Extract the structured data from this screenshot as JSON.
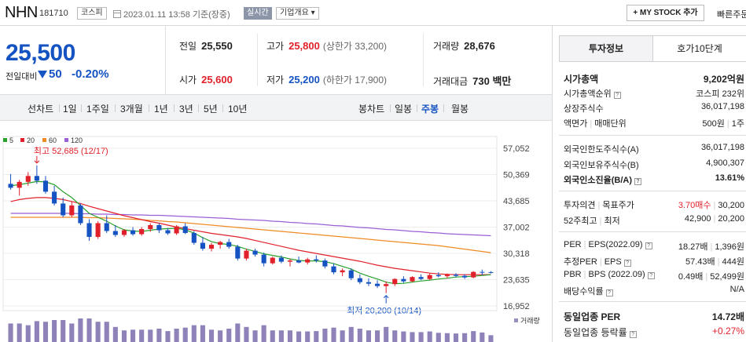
{
  "header": {
    "name": "NHN",
    "code": "181710",
    "market": "코스피",
    "datetime": "2023.01.11 13:58 기준(장중)",
    "realtime": "실시간",
    "overview": "기업개요 ▾",
    "mystock": "+ MY STOCK 추가",
    "quick": "빠른주문"
  },
  "price": {
    "current": "25,500",
    "change_label": "전일대비",
    "change_amount": "50",
    "change_percent": "-0.20%"
  },
  "stats": {
    "prev_close_label": "전일",
    "prev_close": "25,550",
    "high_label": "고가",
    "high": "25,800",
    "upper_limit": "(상한가 33,200)",
    "volume_label": "거래량",
    "volume": "28,676",
    "open_label": "시가",
    "open": "25,600",
    "low_label": "저가",
    "low": "25,200",
    "lower_limit": "(하한가 17,900)",
    "amount_label": "거래대금",
    "amount": "730 백만"
  },
  "tabs": {
    "line": "선차트",
    "d1": "1일",
    "w1": "1주일",
    "m3": "3개월",
    "y1": "1년",
    "y3": "3년",
    "y5": "5년",
    "y10": "10년",
    "candle": "봉차트",
    "daily": "일봉",
    "weekly": "주봉",
    "monthly": "월봉"
  },
  "colors": {
    "up": "#e0212b",
    "down": "#1553c3",
    "ma5": "#27a12b",
    "ma20": "#e0212b",
    "ma60": "#f08a24",
    "ma120": "#9a5fd4"
  },
  "chart_data": {
    "type": "candlestick",
    "period": "주봉",
    "legend": [
      {
        "name": "5",
        "color": "#27a12b"
      },
      {
        "name": "20",
        "color": "#e0212b"
      },
      {
        "name": "60",
        "color": "#f08a24"
      },
      {
        "name": "120",
        "color": "#9a5fd4"
      }
    ],
    "yticks": [
      "57,052",
      "50,369",
      "43,685",
      "37,002",
      "30,318",
      "23,635",
      "16,952"
    ],
    "ylim": [
      16952,
      57052
    ],
    "high_annotation": "최고 52,685 (12/17)",
    "high_value": 52685,
    "low_annotation": "최저 20,200 (10/14)",
    "low_value": 20200,
    "volume_label": "거래량",
    "candles": [
      [
        48000,
        50500,
        46500,
        47000
      ],
      [
        47000,
        49000,
        45000,
        48500
      ],
      [
        48500,
        51000,
        47500,
        50000
      ],
      [
        50000,
        52685,
        48000,
        48800
      ],
      [
        48800,
        50000,
        45500,
        46000
      ],
      [
        46000,
        47500,
        42500,
        43000
      ],
      [
        43000,
        44500,
        39500,
        40000
      ],
      [
        40000,
        43500,
        39500,
        42500
      ],
      [
        42500,
        43000,
        37500,
        38000
      ],
      [
        38000,
        39000,
        33500,
        34500
      ],
      [
        34500,
        38500,
        34000,
        38000
      ],
      [
        38000,
        40000,
        35500,
        36000
      ],
      [
        36000,
        37500,
        34500,
        35000
      ],
      [
        35000,
        36500,
        34500,
        36200
      ],
      [
        36200,
        37000,
        34800,
        35200
      ],
      [
        35200,
        37000,
        34800,
        36500
      ],
      [
        36500,
        38000,
        35800,
        37500
      ],
      [
        37500,
        38000,
        35500,
        36200
      ],
      [
        36200,
        36800,
        35000,
        35400
      ],
      [
        35400,
        37500,
        35000,
        37200
      ],
      [
        37200,
        38000,
        35200,
        35500
      ],
      [
        35500,
        36000,
        32500,
        33000
      ],
      [
        33000,
        34500,
        31000,
        31500
      ],
      [
        31500,
        33000,
        30800,
        32500
      ],
      [
        32500,
        33500,
        31500,
        33200
      ],
      [
        33200,
        34000,
        31500,
        32000
      ],
      [
        32000,
        32500,
        28500,
        29000
      ],
      [
        29000,
        31500,
        28500,
        31000
      ],
      [
        31000,
        31500,
        29500,
        30000
      ],
      [
        30000,
        30500,
        27000,
        27800
      ],
      [
        27800,
        29500,
        27500,
        29200
      ],
      [
        29200,
        29800,
        27800,
        28200
      ],
      [
        28200,
        29000,
        27000,
        28500
      ],
      [
        28500,
        29500,
        27800,
        28000
      ],
      [
        28000,
        29200,
        27500,
        28800
      ],
      [
        28800,
        29800,
        28000,
        28500
      ],
      [
        28500,
        29000,
        26500,
        27000
      ],
      [
        27000,
        27800,
        25000,
        25500
      ],
      [
        25500,
        26500,
        24500,
        26000
      ],
      [
        26000,
        26500,
        23500,
        24000
      ],
      [
        24000,
        25000,
        22500,
        23000
      ],
      [
        23000,
        24000,
        22000,
        22600
      ],
      [
        22600,
        23500,
        21500,
        22000
      ],
      [
        22000,
        23200,
        20200,
        22500
      ],
      [
        22500,
        24000,
        22000,
        23800
      ],
      [
        23800,
        24500,
        22800,
        23200
      ],
      [
        23200,
        24500,
        23000,
        24300
      ],
      [
        24300,
        25000,
        23500,
        23800
      ],
      [
        23800,
        25200,
        23500,
        24800
      ],
      [
        24800,
        25500,
        24200,
        24500
      ],
      [
        24500,
        25200,
        24000,
        24900
      ],
      [
        24900,
        25300,
        24200,
        24600
      ],
      [
        24600,
        25000,
        23800,
        24200
      ],
      [
        24200,
        25800,
        24000,
        25600
      ],
      [
        25600,
        26200,
        24800,
        25550
      ],
      [
        25550,
        25800,
        25200,
        25500
      ]
    ],
    "ma5": [
      47500,
      47800,
      48200,
      48600,
      48500,
      47800,
      46000,
      44500,
      42500,
      40500,
      39500,
      38500,
      37300,
      36300,
      36000,
      35900,
      36200,
      36500,
      36600,
      36700,
      36300,
      35500,
      34300,
      33300,
      32800,
      32600,
      32100,
      31400,
      30800,
      30200,
      29800,
      29400,
      28900,
      28500,
      28400,
      28400,
      28200,
      27700,
      27000,
      26300,
      25300,
      24500,
      23800,
      23000,
      22600,
      22700,
      23000,
      23300,
      23500,
      23800,
      24000,
      24300,
      24400,
      24500,
      24700,
      24900
    ],
    "ma20": [
      43500,
      44000,
      44300,
      44500,
      44500,
      44300,
      44000,
      43500,
      43000,
      42300,
      41700,
      41100,
      40500,
      39900,
      39400,
      38900,
      38400,
      38000,
      37500,
      37000,
      36600,
      36200,
      35800,
      35400,
      35100,
      34800,
      34500,
      34100,
      33600,
      33100,
      32600,
      32100,
      31600,
      31100,
      30700,
      30300,
      29900,
      29500,
      29100,
      28700,
      28300,
      27800,
      27300,
      26900,
      26500,
      26200,
      25900,
      25600,
      25300,
      25100,
      25000,
      24900,
      24900,
      24900,
      24900,
      24900
    ],
    "ma60": [
      39500,
      39500,
      39500,
      39500,
      39500,
      39500,
      39500,
      39500,
      39500,
      39400,
      39400,
      39300,
      39200,
      39100,
      39000,
      38900,
      38700,
      38600,
      38400,
      38300,
      38100,
      37900,
      37700,
      37500,
      37300,
      37100,
      36900,
      36700,
      36500,
      36300,
      36100,
      35900,
      35700,
      35500,
      35300,
      35100,
      34900,
      34700,
      34500,
      34300,
      34100,
      33900,
      33700,
      33500,
      33300,
      33100,
      32900,
      32700,
      32500,
      32300,
      32000,
      31700,
      31400,
      31100,
      30800,
      30500
    ],
    "ma120": [
      40500,
      40500,
      40500,
      40500,
      40500,
      40500,
      40500,
      40500,
      40400,
      40400,
      40300,
      40300,
      40200,
      40200,
      40100,
      40100,
      40000,
      40000,
      39900,
      39800,
      39700,
      39600,
      39500,
      39400,
      39300,
      39200,
      39000,
      38900,
      38800,
      38700,
      38500,
      38400,
      38200,
      38100,
      37900,
      37800,
      37600,
      37400,
      37300,
      37100,
      36900,
      36800,
      36600,
      36400,
      36300,
      36100,
      35900,
      35800,
      35600,
      35500,
      35300,
      35200,
      35100,
      35000,
      34900,
      34800
    ]
  },
  "invest": {
    "tab_info": "투자정보",
    "tab_quote": "호가10단계",
    "rows": [
      {
        "label": "시가총액",
        "value": "9,202억원"
      },
      {
        "label": "시가총액순위",
        "value": "코스피 232위"
      },
      {
        "label": "상장주식수",
        "value": "36,017,198"
      },
      {
        "label": "액면가",
        "label2": "매매단위",
        "value": "500원",
        "value2": "1주"
      },
      {
        "label": "외국인한도주식수(A)",
        "value": "36,017,198"
      },
      {
        "label": "외국인보유주식수(B)",
        "value": "4,900,307"
      },
      {
        "label": "외국인소진율(B/A)",
        "value": "13.61%"
      },
      {
        "label": "투자의견",
        "label2": "목표주가",
        "value": "3.70매수",
        "value2": "30,200"
      },
      {
        "label": "52주최고",
        "label2": "최저",
        "value": "42,900",
        "value2": "20,200"
      },
      {
        "label": "PER",
        "label2": "EPS(2022.09)",
        "value": "18.27배",
        "value2": "1,396원"
      },
      {
        "label": "추정PER",
        "label2": "EPS",
        "value": "57.43배",
        "value2": "444원"
      },
      {
        "label": "PBR",
        "label2": "BPS (2022.09)",
        "value": "0.49배",
        "value2": "52,499원"
      },
      {
        "label": "배당수익률",
        "value": "N/A"
      },
      {
        "label": "동일업종 PER",
        "value": "14.72배"
      },
      {
        "label": "동일업종 등락률",
        "value": "+0.27%"
      }
    ]
  }
}
